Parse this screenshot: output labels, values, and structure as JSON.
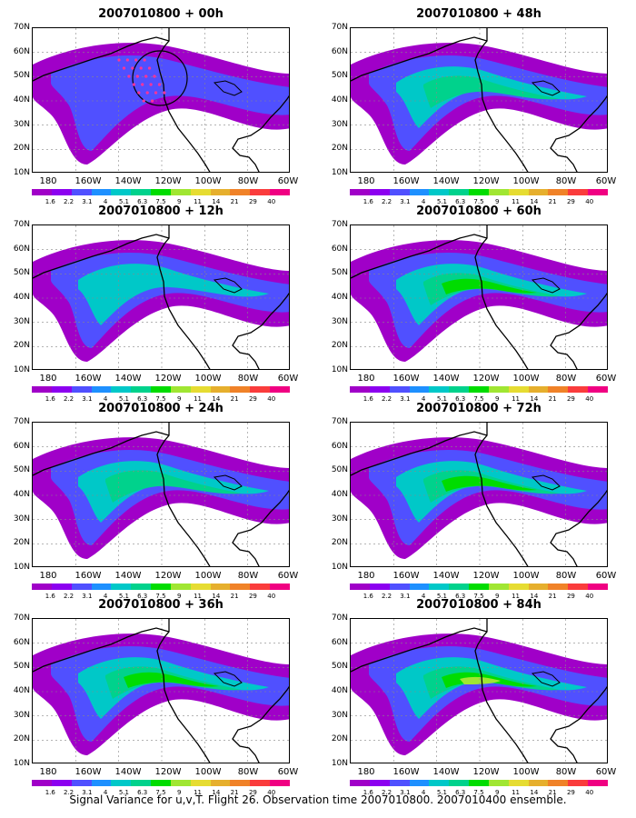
{
  "panels": [
    {
      "title": "2007010800  + 00h",
      "level": 1,
      "marker": true
    },
    {
      "title": "2007010800  + 48h",
      "level": 3,
      "marker": false
    },
    {
      "title": "2007010800  + 12h",
      "level": 2,
      "marker": false
    },
    {
      "title": "2007010800  + 60h",
      "level": 4,
      "marker": false
    },
    {
      "title": "2007010800  + 24h",
      "level": 3,
      "marker": false
    },
    {
      "title": "2007010800  + 72h",
      "level": 4,
      "marker": false
    },
    {
      "title": "2007010800  + 36h",
      "level": 4,
      "marker": false
    },
    {
      "title": "2007010800  + 84h",
      "level": 5,
      "marker": false
    }
  ],
  "axes": {
    "lat_labels": [
      "70N",
      "60N",
      "50N",
      "40N",
      "30N",
      "20N",
      "10N"
    ],
    "lon_labels": [
      "180",
      "160W",
      "140W",
      "120W",
      "100W",
      "80W",
      "60W"
    ]
  },
  "colorbar": {
    "labels": [
      "1.6",
      "2.2",
      "3.1",
      "4",
      "5.1",
      "6.3",
      "7.5",
      "9",
      "11",
      "14",
      "21",
      "29",
      "40"
    ],
    "colors": [
      "#a000c8",
      "#8c00f0",
      "#5050ff",
      "#1e90ff",
      "#00c8c8",
      "#00d28c",
      "#00dc00",
      "#a0e632",
      "#e6dc32",
      "#e6af2d",
      "#f08228",
      "#fa3c3c",
      "#f00082"
    ]
  },
  "caption": "Signal Variance for u,v,T. Flight 26. Observation time 2007010800. 2007010400 ensemble."
}
